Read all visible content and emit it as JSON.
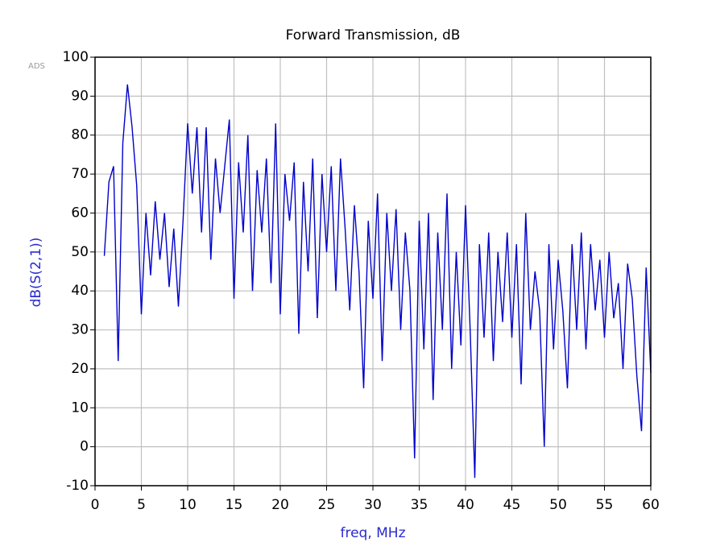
{
  "chart_data": {
    "type": "line",
    "title": "Forward Transmission, dB",
    "watermark": "ADS",
    "x_label": "freq, MHz",
    "y_label": "dB(S(2,1))",
    "x": [
      1,
      1.5,
      2,
      2.5,
      3,
      3.5,
      4,
      4.5,
      5,
      5.5,
      6,
      6.5,
      7,
      7.5,
      8,
      8.5,
      9,
      9.5,
      10,
      10.5,
      11,
      11.5,
      12,
      12.5,
      13,
      13.5,
      14,
      14.5,
      15,
      15.5,
      16,
      16.5,
      17,
      17.5,
      18,
      18.5,
      19,
      19.5,
      20,
      20.5,
      21,
      21.5,
      22,
      22.5,
      23,
      23.5,
      24,
      24.5,
      25,
      25.5,
      26,
      26.5,
      27,
      27.5,
      28,
      28.5,
      29,
      29.5,
      30,
      30.5,
      31,
      31.5,
      32,
      32.5,
      33,
      33.5,
      34,
      34.5,
      35,
      35.5,
      36,
      36.5,
      37,
      37.5,
      38,
      38.5,
      39,
      39.5,
      40,
      40.5,
      41,
      41.5,
      42,
      42.5,
      43,
      43.5,
      44,
      44.5,
      45,
      45.5,
      46,
      46.5,
      47,
      47.5,
      48,
      48.5,
      49,
      49.5,
      50,
      50.5,
      51,
      51.5,
      52,
      52.5,
      53,
      53.5,
      54,
      54.5,
      55,
      55.5,
      56,
      56.5,
      57,
      57.5,
      58,
      58.5,
      59,
      59.5,
      60
    ],
    "series": [
      {
        "name": "dB(S(2,1))",
        "color": "#0000cc",
        "values": [
          49,
          68,
          72,
          22,
          78,
          93,
          82,
          67,
          34,
          60,
          44,
          63,
          48,
          60,
          41,
          56,
          36,
          58,
          83,
          65,
          82,
          55,
          82,
          48,
          74,
          60,
          72,
          84,
          38,
          73,
          55,
          80,
          40,
          71,
          55,
          74,
          42,
          83,
          34,
          70,
          58,
          73,
          29,
          68,
          45,
          74,
          33,
          70,
          50,
          72,
          40,
          74,
          56,
          35,
          62,
          45,
          15,
          58,
          38,
          65,
          22,
          60,
          40,
          61,
          30,
          55,
          40,
          -3,
          58,
          25,
          60,
          12,
          55,
          30,
          65,
          20,
          50,
          26,
          62,
          30,
          -8,
          52,
          28,
          55,
          22,
          50,
          32,
          55,
          28,
          52,
          16,
          60,
          30,
          45,
          35,
          0,
          52,
          25,
          48,
          35,
          15,
          52,
          30,
          55,
          25,
          52,
          35,
          48,
          28,
          50,
          33,
          42,
          20,
          47,
          38,
          18,
          4,
          46,
          19
        ]
      }
    ],
    "xlim": [
      0,
      60
    ],
    "xticks": [
      0,
      5,
      10,
      15,
      20,
      25,
      30,
      35,
      40,
      45,
      50,
      55,
      60
    ],
    "ylim": [
      -10,
      100
    ],
    "yticks": [
      -10,
      0,
      10,
      20,
      30,
      40,
      50,
      60,
      70,
      80,
      90,
      100
    ],
    "grid": true
  }
}
